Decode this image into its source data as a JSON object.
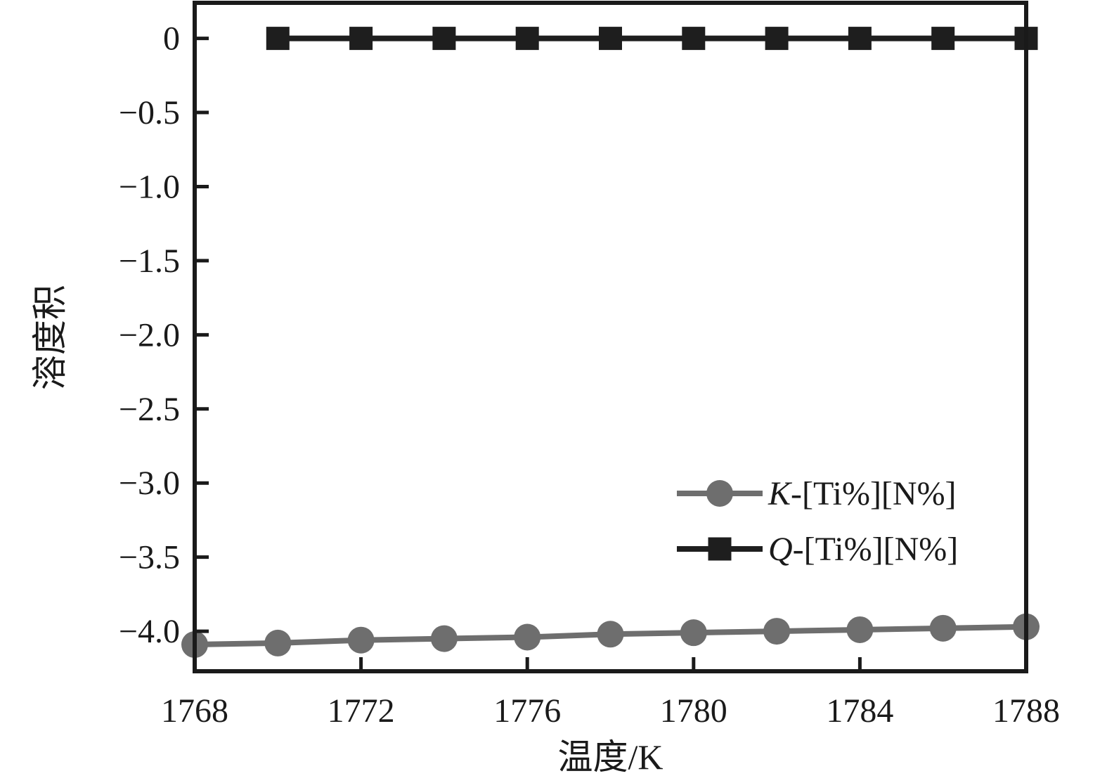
{
  "figure": {
    "background": "#ffffff",
    "text_color": "#1a1a1a"
  },
  "chart_data": {
    "type": "line",
    "title": "",
    "xlabel": "温度/K",
    "ylabel": "溶度积",
    "xlim": [
      1768,
      1788
    ],
    "ylim": [
      -4.27,
      0.24
    ],
    "grid": false,
    "legend_position": "inside lower-right",
    "x_ticks": [
      1772,
      1776,
      1780,
      1784,
      1788
    ],
    "x_tick_label_values": [
      1768,
      1772,
      1776,
      1780,
      1784,
      1788
    ],
    "x_tick_labels": [
      "1768",
      "1772",
      "1776",
      "1780",
      "1784",
      "1788"
    ],
    "y_ticks": [
      0,
      -0.5,
      -1.0,
      -1.5,
      -2.0,
      -2.5,
      -3.0,
      -3.5,
      -4.0
    ],
    "y_tick_labels": [
      "0",
      "−0.5",
      "−1.0",
      "−1.5",
      "−2.0",
      "−2.5",
      "−3.0",
      "−3.5",
      "−4.0"
    ],
    "series": [
      {
        "name": "K-[Ti%][N%]",
        "name_italic_part": "K",
        "name_rest_part": "-[Ti%][N%]",
        "color": "#6e6e6e",
        "marker": "circle",
        "x": [
          1768,
          1770,
          1772,
          1774,
          1776,
          1778,
          1780,
          1782,
          1784,
          1786,
          1788
        ],
        "y": [
          -4.09,
          -4.08,
          -4.06,
          -4.05,
          -4.04,
          -4.02,
          -4.01,
          -4.0,
          -3.99,
          -3.98,
          -3.97
        ]
      },
      {
        "name": "Q-[Ti%][N%]",
        "name_italic_part": "Q",
        "name_rest_part": "-[Ti%][N%]",
        "color": "#1e1e1e",
        "marker": "square",
        "x": [
          1770,
          1772,
          1774,
          1776,
          1778,
          1780,
          1782,
          1784,
          1786,
          1788
        ],
        "y": [
          0,
          0,
          0,
          0,
          0,
          0,
          0,
          0,
          0,
          0
        ]
      }
    ]
  }
}
